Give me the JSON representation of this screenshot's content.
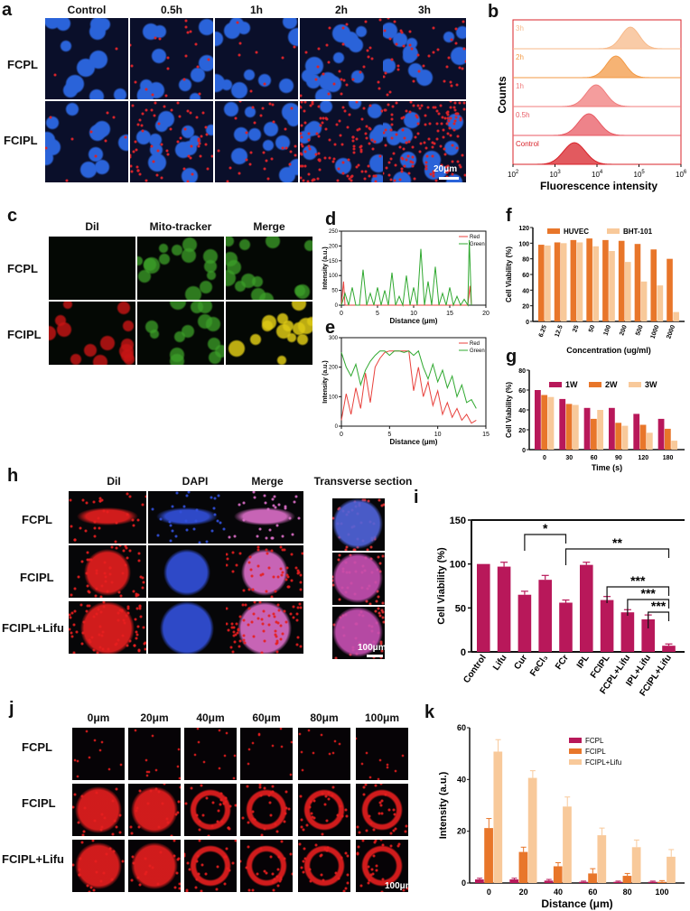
{
  "panels": {
    "a": "a",
    "b": "b",
    "c": "c",
    "d": "d",
    "e": "e",
    "f": "f",
    "g": "g",
    "h": "h",
    "i": "i",
    "j": "j",
    "k": "k"
  },
  "panel_a": {
    "columns": [
      "Control",
      "0.5h",
      "1h",
      "2h",
      "3h"
    ],
    "rows": [
      "FCPL",
      "FCIPL"
    ],
    "scale": "20μm"
  },
  "panel_b": {
    "labels": [
      "3h",
      "2h",
      "1h",
      "0.5h",
      "Control"
    ],
    "ylabel": "Counts",
    "xlabel": "Fluorescence intensity",
    "ticks": [
      "10",
      "10",
      "10",
      "10",
      "10"
    ],
    "tick_exp": [
      "2",
      "3",
      "4",
      "5",
      "6"
    ],
    "colors": [
      "#f7b98a",
      "#f39a45",
      "#f07c7c",
      "#e85a63",
      "#d8232a"
    ]
  },
  "panel_c": {
    "columns": [
      "DiI",
      "Mito-tracker",
      "Merge"
    ],
    "rows": [
      "FCPL",
      "FCIPL"
    ],
    "scale": "20μm"
  },
  "panel_h": {
    "columns": [
      "DiI",
      "DAPI",
      "Merge",
      "Transverse section"
    ],
    "rows": [
      "FCPL",
      "FCIPL",
      "FCIPL+Lifu"
    ],
    "scale": "100μm"
  },
  "panel_j": {
    "columns": [
      "0μm",
      "20μm",
      "40μm",
      "60μm",
      "80μm",
      "100μm"
    ],
    "rows": [
      "FCPL",
      "FCIPL",
      "FCIPL+Lifu"
    ],
    "scale": "100μm"
  },
  "chart_data": [
    {
      "id": "d",
      "type": "line",
      "xlabel": "Distance (μm)",
      "ylabel": "Intensity (a.u.)",
      "xlim": [
        0,
        20
      ],
      "ylim": [
        0,
        250
      ],
      "xticks": [
        "0",
        "5",
        "10",
        "15",
        "20"
      ],
      "yticks": [
        "0",
        "50",
        "100",
        "150",
        "200",
        "250"
      ],
      "series": [
        {
          "name": "Red",
          "color": "#e8413c",
          "x": [
            0,
            0.3,
            0.5,
            1,
            2,
            3,
            4,
            5,
            6,
            7,
            8,
            9,
            10,
            11,
            12,
            13,
            14,
            15,
            16,
            17,
            17.5,
            17.8,
            18
          ],
          "y": [
            0,
            80,
            0,
            0,
            0,
            0,
            0,
            0,
            0,
            0,
            0,
            0,
            0,
            0,
            0,
            0,
            0,
            0,
            0,
            0,
            0,
            65,
            0
          ]
        },
        {
          "name": "Green",
          "color": "#2fa82f",
          "x": [
            0,
            0.5,
            1,
            1.5,
            2,
            2.5,
            3,
            3.5,
            4,
            4.5,
            5,
            5.5,
            6,
            6.5,
            7,
            7.5,
            8,
            8.5,
            9,
            9.5,
            10,
            10.5,
            11,
            11.5,
            12,
            12.5,
            13,
            13.5,
            14,
            14.5,
            15,
            15.5,
            16,
            16.5,
            17,
            17.5,
            17.7,
            18
          ],
          "y": [
            0,
            40,
            0,
            60,
            0,
            0,
            120,
            0,
            40,
            0,
            60,
            0,
            50,
            0,
            110,
            0,
            30,
            0,
            100,
            0,
            60,
            0,
            190,
            0,
            80,
            0,
            130,
            0,
            40,
            0,
            60,
            0,
            30,
            0,
            20,
            0,
            220,
            0
          ]
        }
      ]
    },
    {
      "id": "e",
      "type": "line",
      "xlabel": "Distance (μm)",
      "ylabel": "Intensity (a.u.)",
      "xlim": [
        0,
        15
      ],
      "ylim": [
        0,
        300
      ],
      "xticks": [
        "0",
        "5",
        "10",
        "15"
      ],
      "yticks": [
        "0",
        "100",
        "200",
        "300"
      ],
      "series": [
        {
          "name": "Red",
          "color": "#e8413c",
          "x": [
            0,
            0.5,
            1,
            1.5,
            2,
            2.5,
            3,
            3.5,
            4,
            4.5,
            5,
            5.5,
            6,
            6.5,
            7,
            7.5,
            8,
            8.5,
            9,
            9.5,
            10,
            10.5,
            11,
            11.5,
            12,
            12.5,
            13,
            13.5,
            14
          ],
          "y": [
            20,
            110,
            40,
            130,
            60,
            180,
            80,
            200,
            230,
            250,
            255,
            255,
            255,
            255,
            255,
            120,
            200,
            100,
            150,
            70,
            120,
            40,
            80,
            30,
            60,
            20,
            40,
            10,
            20
          ]
        },
        {
          "name": "Green",
          "color": "#2fa82f",
          "x": [
            0,
            0.5,
            1,
            1.5,
            2,
            2.5,
            3,
            3.5,
            4,
            4.5,
            5,
            5.5,
            6,
            6.5,
            7,
            7.5,
            8,
            8.5,
            9,
            9.5,
            10,
            10.5,
            11,
            11.5,
            12,
            12.5,
            13,
            13.5,
            14
          ],
          "y": [
            250,
            200,
            170,
            210,
            140,
            190,
            220,
            240,
            255,
            255,
            240,
            255,
            255,
            250,
            255,
            240,
            255,
            200,
            160,
            210,
            150,
            190,
            130,
            170,
            100,
            140,
            80,
            90,
            60
          ]
        }
      ]
    },
    {
      "id": "f",
      "type": "bar",
      "xlabel": "Concentration (ug/ml)",
      "ylabel": "Cell Viability (%)",
      "ylim": [
        0,
        120
      ],
      "yticks": [
        "0",
        "20",
        "40",
        "60",
        "80",
        "100",
        "120"
      ],
      "categories": [
        "6.25",
        "12.5",
        "25",
        "50",
        "100",
        "200",
        "500",
        "1000",
        "2000"
      ],
      "series": [
        {
          "name": "HUVEC",
          "color": "#e8762a",
          "values": [
            98,
            101,
            104,
            106,
            104,
            103,
            99,
            92,
            80
          ]
        },
        {
          "name": "BHT-101",
          "color": "#f8c99a",
          "values": [
            97,
            100,
            101,
            96,
            90,
            76,
            51,
            46,
            12
          ]
        }
      ]
    },
    {
      "id": "g",
      "type": "bar",
      "xlabel": "Time (s)",
      "ylabel": "Cell Viability (%)",
      "ylim": [
        0,
        80
      ],
      "yticks": [
        "0",
        "20",
        "40",
        "60",
        "80"
      ],
      "categories": [
        "0",
        "30",
        "60",
        "90",
        "120",
        "180"
      ],
      "series": [
        {
          "name": "1W",
          "color": "#b8185a",
          "values": [
            60,
            51,
            42,
            42,
            36,
            31
          ]
        },
        {
          "name": "2W",
          "color": "#e8762a",
          "values": [
            55,
            46,
            31,
            27,
            25,
            21
          ]
        },
        {
          "name": "3W",
          "color": "#f8c99a",
          "values": [
            53,
            45,
            40,
            24,
            17,
            9
          ]
        }
      ]
    },
    {
      "id": "i",
      "type": "bar",
      "ylabel": "Cell Viability (%)",
      "ylim": [
        0,
        150
      ],
      "yticks": [
        "0",
        "50",
        "100",
        "150"
      ],
      "categories": [
        "Control",
        "Lifu",
        "Cur",
        "FeCl₃",
        "FCr",
        "IPL",
        "FCIPL",
        "FCPL+Lifu",
        "IPL+Lifu",
        "FCIPL+Lifu"
      ],
      "values": [
        100,
        97,
        65,
        82,
        56,
        99,
        59,
        45,
        37,
        7
      ],
      "errors": [
        0,
        5,
        4,
        5,
        3,
        3,
        4,
        3,
        5,
        2
      ],
      "color": "#b8185a",
      "annotations": [
        "*",
        "**",
        "***",
        "***",
        "***"
      ]
    },
    {
      "id": "k",
      "type": "bar",
      "xlabel": "Distance (μm)",
      "ylabel": "Intensity (a.u.)",
      "ylim": [
        0,
        65
      ],
      "yticks": [
        "0",
        "20",
        "40",
        "60"
      ],
      "categories": [
        "0",
        "20",
        "40",
        "60",
        "80",
        "100"
      ],
      "series": [
        {
          "name": "FCPL",
          "color": "#b8185a",
          "values": [
            1.5,
            1.5,
            1,
            0.5,
            0.5,
            0.5
          ],
          "errors": [
            0.5,
            0.5,
            0.5,
            0.3,
            0.3,
            0.3
          ]
        },
        {
          "name": "FCIPL",
          "color": "#e8762a",
          "values": [
            23,
            13,
            7,
            4,
            3,
            0.5
          ],
          "errors": [
            4,
            2,
            1.5,
            2,
            1,
            0.5
          ]
        },
        {
          "name": "FCIPL+Lifu",
          "color": "#f8c99a",
          "values": [
            55,
            44,
            32,
            20,
            15,
            11
          ],
          "errors": [
            5,
            3,
            4,
            3,
            3,
            3
          ]
        }
      ]
    }
  ]
}
